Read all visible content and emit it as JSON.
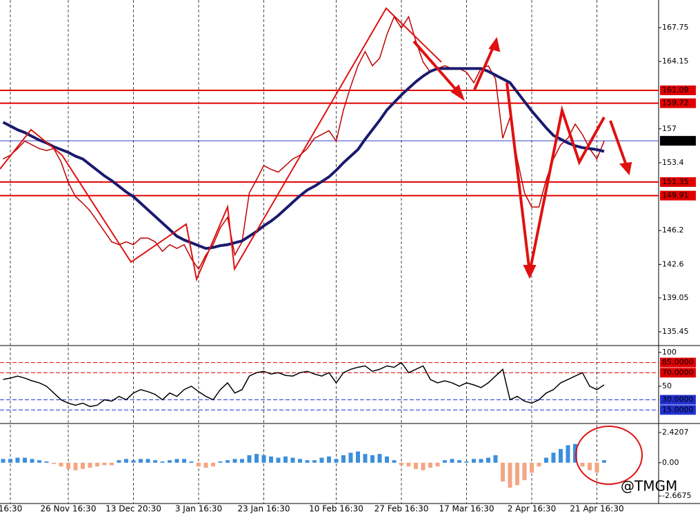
{
  "chart_data": [
    {
      "type": "line",
      "categories": [
        null,
        "16:30",
        null,
        null,
        null,
        null,
        null,
        null,
        null,
        "26 Nov 16:30",
        null,
        null,
        null,
        null,
        null,
        null,
        null,
        null,
        "13 Dec 20:30",
        null,
        null,
        null,
        null,
        null,
        null,
        null,
        null,
        "3 Jan 16:30",
        null,
        null,
        null,
        null,
        null,
        null,
        null,
        null,
        "23 Jan 16:30",
        null,
        null,
        null,
        null,
        null,
        null,
        null,
        null,
        null,
        "10 Feb 16:30",
        null,
        null,
        null,
        null,
        null,
        null,
        null,
        null,
        "27 Feb 16:30",
        null,
        null,
        null,
        null,
        null,
        null,
        null,
        null,
        "17 Mar 16:30",
        null,
        null,
        null,
        null,
        null,
        null,
        null,
        null,
        "2 Apr 16:30",
        null,
        null,
        null,
        null,
        null,
        null,
        null,
        null,
        "21 Apr 16:30",
        null
      ],
      "series": [
        {
          "color": "#c00000",
          "values": [
            153.8,
            154.2,
            154.9,
            155.7,
            155.3,
            154.9,
            154.7,
            154.9,
            153.5,
            151.3,
            149.8,
            149.1,
            148.3,
            147.2,
            146.1,
            145.0,
            144.7,
            145.0,
            144.7,
            145.4,
            145.4,
            145.0,
            144.0,
            144.7,
            144.3,
            144.7,
            143.2,
            142.1,
            143.6,
            144.7,
            146.5,
            147.6,
            143.6,
            145.0,
            150.2,
            151.6,
            153.1,
            152.7,
            152.4,
            153.1,
            153.8,
            154.2,
            154.9,
            156.0,
            156.4,
            156.8,
            155.7,
            159.0,
            161.5,
            163.7,
            165.2,
            163.7,
            164.5,
            167.0,
            168.9,
            167.7,
            168.9,
            166.3,
            164.1,
            163.0,
            163.4,
            163.7,
            163.4,
            163.4,
            163.0,
            161.9,
            163.4,
            163.7,
            162.3,
            156.0,
            158.2,
            153.8,
            150.2,
            148.7,
            148.7,
            151.6,
            153.8,
            155.3,
            156.0,
            157.5,
            156.4,
            154.9,
            153.8,
            155.7
          ]
        },
        {
          "color": "#1a1a6e",
          "values": [
            157.7,
            157.3,
            156.9,
            156.6,
            156.2,
            155.8,
            155.5,
            155.1,
            154.8,
            154.5,
            154.1,
            153.8,
            153.2,
            152.6,
            152.0,
            151.5,
            150.9,
            150.3,
            149.8,
            149.1,
            148.4,
            147.7,
            147.0,
            146.3,
            145.6,
            145.2,
            144.9,
            144.6,
            144.3,
            144.4,
            144.6,
            144.7,
            144.9,
            145.1,
            145.6,
            146.1,
            146.7,
            147.2,
            147.8,
            148.5,
            149.2,
            149.9,
            150.5,
            150.9,
            151.4,
            151.9,
            152.6,
            153.4,
            154.1,
            154.8,
            155.9,
            156.9,
            157.9,
            159.0,
            159.8,
            160.6,
            161.3,
            162.0,
            162.6,
            163.1,
            163.4,
            163.4,
            163.4,
            163.4,
            163.4,
            163.4,
            163.4,
            163.1,
            162.7,
            162.3,
            161.9,
            160.9,
            159.9,
            158.9,
            158.0,
            157.1,
            156.3,
            155.9,
            155.5,
            155.2,
            155.0,
            154.9,
            154.8,
            154.6
          ]
        }
      ],
      "ylim": [
        134.06,
        170.68
      ],
      "yticks": [
        167.75,
        164.15,
        157.0,
        153.4,
        146.2,
        142.6,
        139.05,
        135.45
      ],
      "levels": [
        161.09,
        159.72,
        151.35,
        149.91
      ],
      "level_color": "#e00000",
      "current": 155.73,
      "current_color": "#3040c0"
    },
    {
      "type": "line",
      "series": [
        {
          "color": "#000000",
          "values": [
            60,
            62,
            65,
            62,
            58,
            55,
            50,
            40,
            30,
            25,
            22,
            25,
            20,
            22,
            30,
            28,
            35,
            30,
            40,
            45,
            42,
            38,
            30,
            40,
            35,
            45,
            50,
            42,
            35,
            30,
            45,
            55,
            40,
            45,
            65,
            70,
            72,
            68,
            70,
            66,
            65,
            70,
            72,
            68,
            65,
            70,
            55,
            70,
            75,
            78,
            80,
            72,
            75,
            80,
            78,
            85,
            70,
            75,
            80,
            60,
            55,
            58,
            55,
            50,
            55,
            52,
            48,
            55,
            65,
            75,
            30,
            35,
            28,
            25,
            30,
            40,
            45,
            55,
            60,
            65,
            70,
            50,
            45,
            52
          ]
        }
      ],
      "ylim": [
        -3,
        108
      ],
      "yticks": [
        100,
        50
      ],
      "levels": [
        {
          "value": 85,
          "label": "85.0000",
          "color": "#e00000"
        },
        {
          "value": 70,
          "label": "70.0000",
          "color": "#e00000"
        },
        {
          "value": 30,
          "label": "30.0000",
          "color": "#2030d0"
        },
        {
          "value": 15,
          "label": "15.0000",
          "color": "#2030d0"
        }
      ]
    },
    {
      "type": "bar",
      "values": [
        0.3,
        0.3,
        0.4,
        0.4,
        0.3,
        0.2,
        0.1,
        -0.1,
        -0.3,
        -0.5,
        -0.6,
        -0.5,
        -0.4,
        -0.3,
        -0.2,
        -0.2,
        0.2,
        0.3,
        0.2,
        0.3,
        0.3,
        0.2,
        0.1,
        0.2,
        0.3,
        0.3,
        0.1,
        -0.3,
        -0.4,
        -0.3,
        0.1,
        0.2,
        0.3,
        0.3,
        0.6,
        0.7,
        0.6,
        0.5,
        0.4,
        0.5,
        0.4,
        0.3,
        0.2,
        0.2,
        0.4,
        0.5,
        0.3,
        0.6,
        0.8,
        0.9,
        0.7,
        0.6,
        0.7,
        0.5,
        0.2,
        -0.2,
        -0.3,
        -0.5,
        -0.6,
        -0.4,
        -0.3,
        0.2,
        0.3,
        0.2,
        0.1,
        0.3,
        0.3,
        0.4,
        0.6,
        -1.5,
        -2.0,
        -1.8,
        -1.4,
        -0.8,
        -0.3,
        0.4,
        0.8,
        1.1,
        1.4,
        1.5,
        -0.3,
        -0.6,
        -0.8,
        0.2
      ],
      "ylim": [
        -3.27,
        3.03
      ],
      "yticks": [
        {
          "value": 2.4207,
          "label": "2.4207"
        },
        {
          "value": 0,
          "label": "0.00"
        },
        {
          "value": -2.6675,
          "label": "-2.6675"
        }
      ],
      "positive_color": "#3b8fdc",
      "negative_color": "#f4a582"
    }
  ],
  "watermark": "@TMGM"
}
